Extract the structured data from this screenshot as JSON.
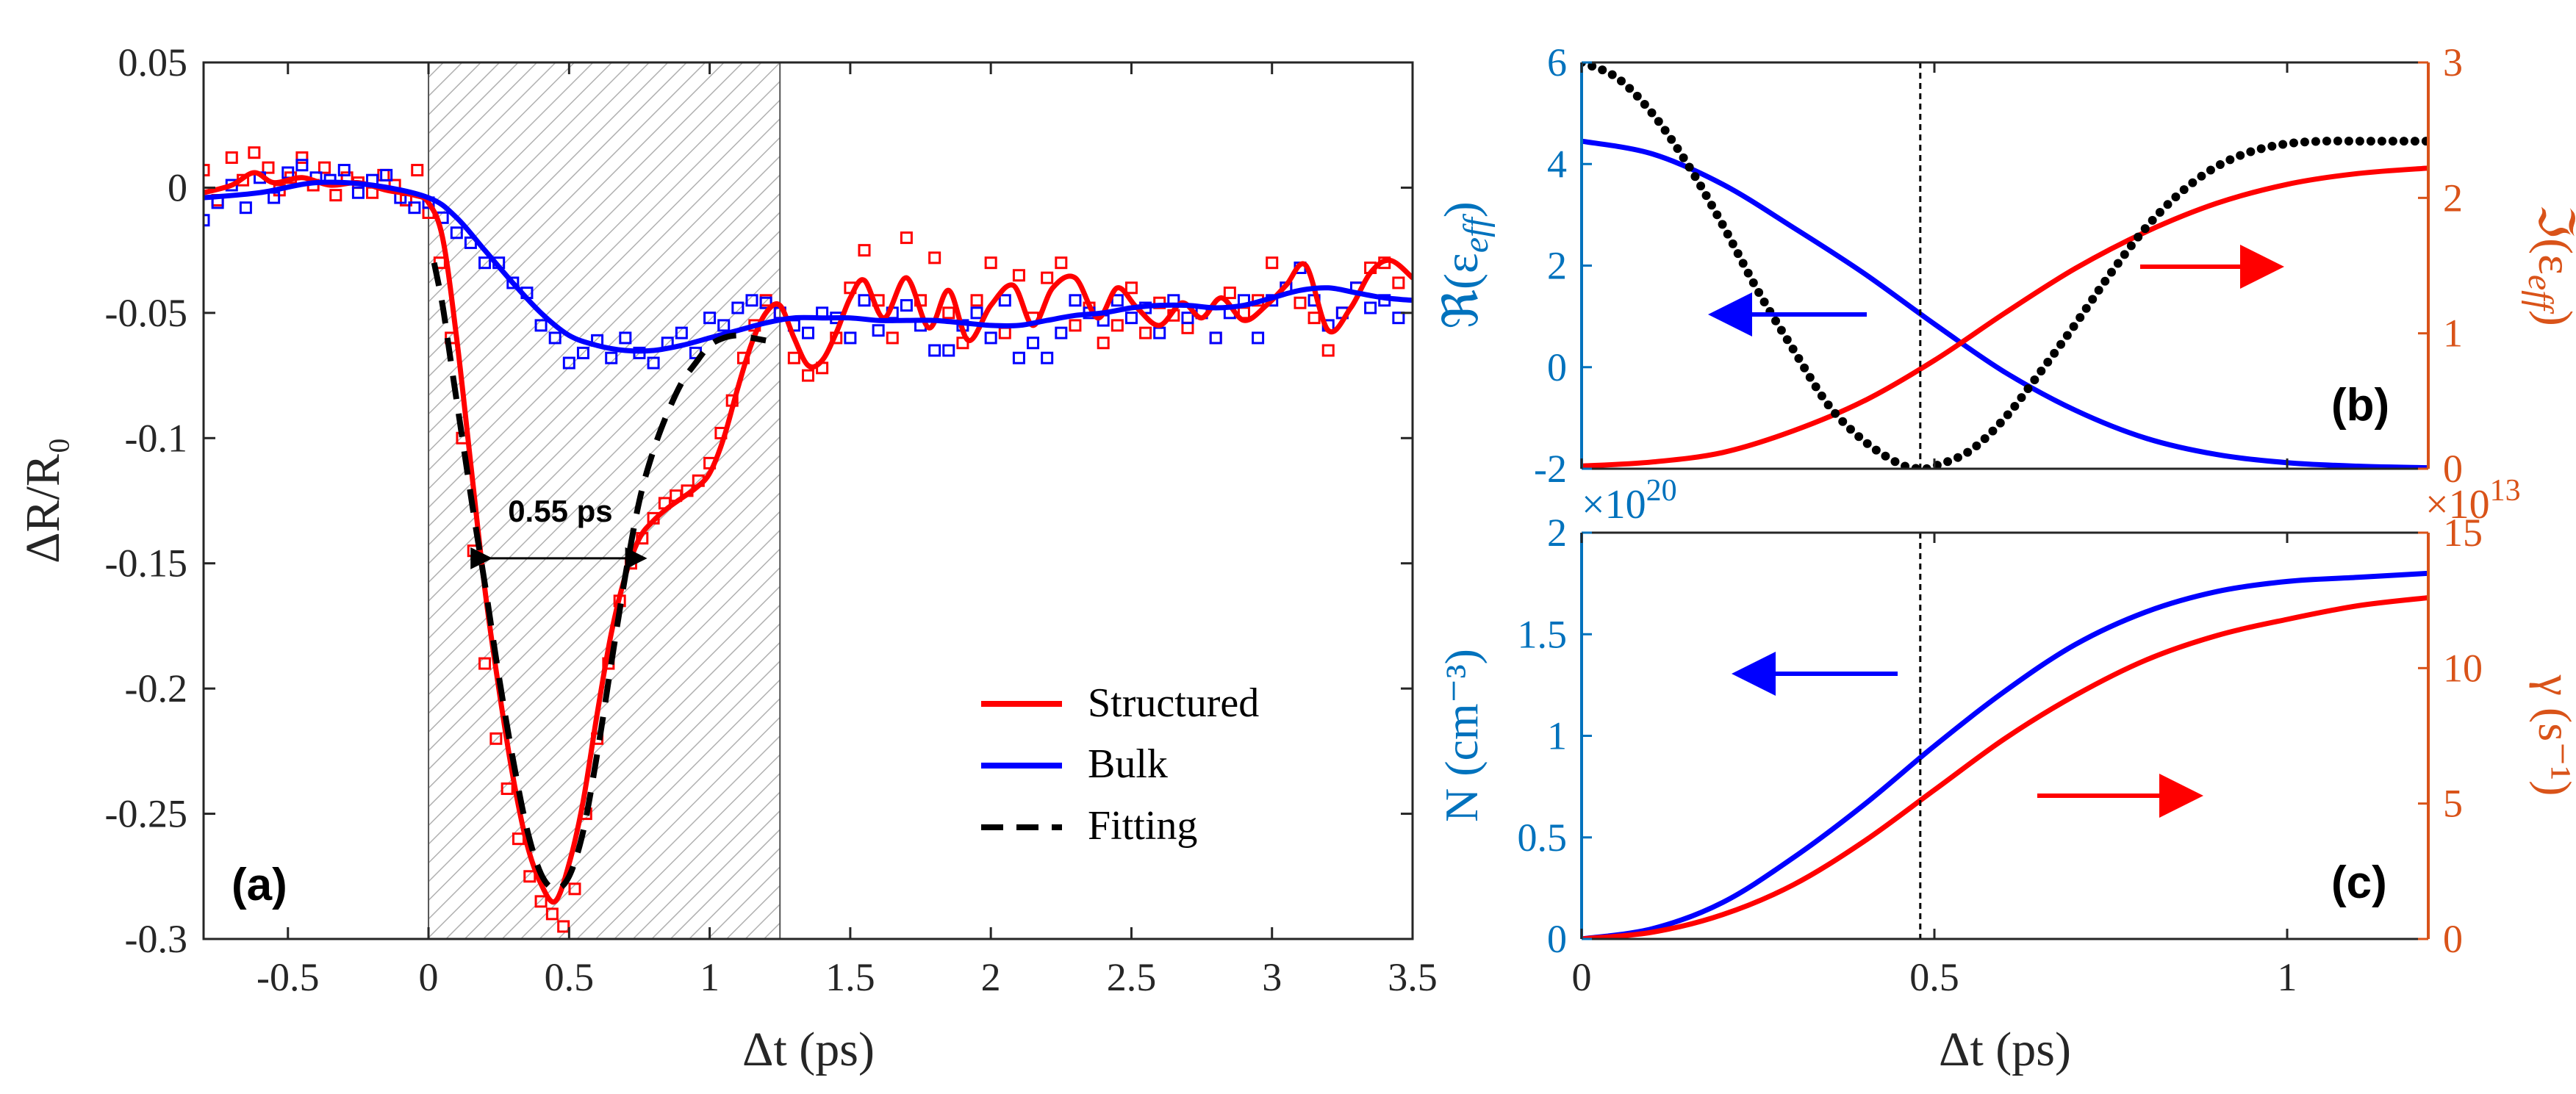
{
  "colors": {
    "structured": "#ff0000",
    "bulk": "#0000ff",
    "fitting": "#000000",
    "left_axis_blue": "#0072bd",
    "right_axis_orange": "#d95319",
    "hatch": "#b0b0b0"
  },
  "chart_data": [
    {
      "id": "a",
      "type": "line",
      "panel_label": "(a)",
      "xlabel": "Δt (ps)",
      "ylabel": "ΔR/R₀",
      "xlim": [
        -0.8,
        3.5
      ],
      "ylim": [
        -0.3,
        0.05
      ],
      "xticks": [
        -0.5,
        0,
        0.5,
        1,
        1.5,
        2,
        2.5,
        3,
        3.5
      ],
      "xtick_labels": [
        "-0.5",
        "0",
        "0.5",
        "1",
        "1.5",
        "2",
        "2.5",
        "3",
        "3.5"
      ],
      "yticks": [
        0.05,
        0,
        -0.05,
        -0.1,
        -0.15,
        -0.2,
        -0.25,
        -0.3
      ],
      "ytick_labels": [
        "0.05",
        "0",
        "-0.05",
        "-0.1",
        "-0.15",
        "-0.2",
        "-0.25",
        "-0.3"
      ],
      "shaded_region": [
        0,
        1.25
      ],
      "annotation": {
        "text": "0.55 ps",
        "from": 0.22,
        "to": 0.77,
        "y": -0.148
      },
      "legend": {
        "entries": [
          "Structured",
          "Bulk",
          "Fitting"
        ],
        "placement": "bottom-right"
      },
      "series": [
        {
          "name": "Structured",
          "color": "#ff0000",
          "style": "solid",
          "x": [
            -0.8,
            -0.7,
            -0.62,
            -0.55,
            -0.45,
            -0.35,
            -0.25,
            -0.15,
            -0.05,
            0.0,
            0.05,
            0.1,
            0.15,
            0.2,
            0.25,
            0.3,
            0.35,
            0.4,
            0.45,
            0.5,
            0.55,
            0.6,
            0.65,
            0.7,
            0.75,
            0.8,
            0.85,
            0.9,
            0.95,
            1.0,
            1.05,
            1.1,
            1.15,
            1.2,
            1.25,
            1.3,
            1.35,
            1.4,
            1.45,
            1.5,
            1.55,
            1.62,
            1.7,
            1.78,
            1.85,
            1.92,
            2.0,
            2.08,
            2.15,
            2.22,
            2.3,
            2.38,
            2.45,
            2.52,
            2.6,
            2.68,
            2.75,
            2.82,
            2.9,
            2.98,
            3.05,
            3.12,
            3.2,
            3.28,
            3.35,
            3.42,
            3.5
          ],
          "y": [
            -0.002,
            0.001,
            0.006,
            0.002,
            0.004,
            0.001,
            0.002,
            -0.001,
            -0.003,
            -0.006,
            -0.02,
            -0.06,
            -0.11,
            -0.16,
            -0.2,
            -0.235,
            -0.262,
            -0.278,
            -0.285,
            -0.27,
            -0.245,
            -0.21,
            -0.178,
            -0.155,
            -0.14,
            -0.133,
            -0.128,
            -0.124,
            -0.12,
            -0.114,
            -0.1,
            -0.08,
            -0.062,
            -0.05,
            -0.047,
            -0.06,
            -0.071,
            -0.069,
            -0.058,
            -0.044,
            -0.037,
            -0.052,
            -0.036,
            -0.056,
            -0.041,
            -0.061,
            -0.047,
            -0.039,
            -0.055,
            -0.04,
            -0.036,
            -0.052,
            -0.04,
            -0.048,
            -0.055,
            -0.046,
            -0.052,
            -0.044,
            -0.053,
            -0.047,
            -0.039,
            -0.031,
            -0.057,
            -0.048,
            -0.034,
            -0.029,
            -0.036
          ]
        },
        {
          "name": "Bulk",
          "color": "#0000ff",
          "style": "solid",
          "x": [
            -0.8,
            -0.6,
            -0.4,
            -0.2,
            0.0,
            0.1,
            0.2,
            0.3,
            0.4,
            0.5,
            0.6,
            0.7,
            0.8,
            0.9,
            1.0,
            1.1,
            1.2,
            1.3,
            1.4,
            1.5,
            1.6,
            1.7,
            1.8,
            1.9,
            2.0,
            2.1,
            2.2,
            2.3,
            2.4,
            2.5,
            2.6,
            2.7,
            2.8,
            2.9,
            3.0,
            3.1,
            3.2,
            3.3,
            3.4,
            3.5
          ],
          "y": [
            -0.004,
            -0.002,
            0.002,
            0.001,
            -0.004,
            -0.012,
            -0.025,
            -0.038,
            -0.05,
            -0.059,
            -0.063,
            -0.065,
            -0.065,
            -0.063,
            -0.06,
            -0.057,
            -0.054,
            -0.052,
            -0.052,
            -0.052,
            -0.053,
            -0.053,
            -0.053,
            -0.054,
            -0.055,
            -0.055,
            -0.053,
            -0.051,
            -0.05,
            -0.048,
            -0.047,
            -0.047,
            -0.048,
            -0.047,
            -0.044,
            -0.041,
            -0.04,
            -0.042,
            -0.044,
            -0.045
          ]
        },
        {
          "name": "Fitting",
          "color": "#000000",
          "style": "dashed",
          "x": [
            0.02,
            0.05,
            0.08,
            0.12,
            0.16,
            0.2,
            0.25,
            0.3,
            0.35,
            0.4,
            0.45,
            0.5,
            0.55,
            0.6,
            0.65,
            0.7,
            0.75,
            0.8,
            0.85,
            0.9,
            0.95,
            1.0,
            1.05,
            1.1,
            1.15,
            1.2
          ],
          "y": [
            -0.03,
            -0.047,
            -0.07,
            -0.1,
            -0.13,
            -0.158,
            -0.195,
            -0.228,
            -0.256,
            -0.274,
            -0.28,
            -0.275,
            -0.257,
            -0.226,
            -0.19,
            -0.155,
            -0.125,
            -0.105,
            -0.09,
            -0.078,
            -0.07,
            -0.063,
            -0.06,
            -0.059,
            -0.06,
            -0.061
          ]
        },
        {
          "name": "Structured (measured)",
          "color": "#ff0000",
          "style": "markers",
          "x": [
            -0.8,
            -0.75,
            -0.7,
            -0.66,
            -0.62,
            -0.57,
            -0.53,
            -0.49,
            -0.45,
            -0.41,
            -0.37,
            -0.33,
            -0.29,
            -0.25,
            -0.2,
            -0.16,
            -0.12,
            -0.08,
            -0.04,
            0.0,
            0.04,
            0.08,
            0.12,
            0.16,
            0.2,
            0.24,
            0.28,
            0.32,
            0.36,
            0.4,
            0.44,
            0.48,
            0.52,
            0.56,
            0.6,
            0.64,
            0.68,
            0.72,
            0.76,
            0.8,
            0.84,
            0.88,
            0.92,
            0.96,
            1.0,
            1.04,
            1.08,
            1.12,
            1.16,
            1.2,
            1.25,
            1.3,
            1.35,
            1.4,
            1.45,
            1.5,
            1.55,
            1.6,
            1.65,
            1.7,
            1.75,
            1.8,
            1.85,
            1.9,
            1.95,
            2.0,
            2.05,
            2.1,
            2.15,
            2.2,
            2.25,
            2.3,
            2.35,
            2.4,
            2.45,
            2.5,
            2.55,
            2.6,
            2.65,
            2.7,
            2.75,
            2.8,
            2.85,
            2.9,
            2.95,
            3.0,
            3.05,
            3.1,
            3.15,
            3.2,
            3.25,
            3.3,
            3.35,
            3.4,
            3.45
          ],
          "y": [
            0.007,
            -0.005,
            0.012,
            0.003,
            0.014,
            0.008,
            -0.001,
            0.004,
            0.012,
            0.001,
            0.008,
            -0.003,
            0.004,
            0.002,
            -0.002,
            0.005,
            0.001,
            -0.005,
            0.007,
            -0.01,
            -0.03,
            -0.06,
            -0.1,
            -0.145,
            -0.19,
            -0.22,
            -0.24,
            -0.26,
            -0.275,
            -0.285,
            -0.29,
            -0.295,
            -0.28,
            -0.25,
            -0.22,
            -0.19,
            -0.165,
            -0.15,
            -0.14,
            -0.132,
            -0.126,
            -0.123,
            -0.121,
            -0.117,
            -0.11,
            -0.098,
            -0.085,
            -0.068,
            -0.055,
            -0.045,
            -0.05,
            -0.068,
            -0.075,
            -0.072,
            -0.06,
            -0.04,
            -0.025,
            -0.045,
            -0.06,
            -0.02,
            -0.045,
            -0.028,
            -0.05,
            -0.062,
            -0.045,
            -0.03,
            -0.058,
            -0.035,
            -0.052,
            -0.036,
            -0.03,
            -0.055,
            -0.048,
            -0.062,
            -0.055,
            -0.04,
            -0.058,
            -0.046,
            -0.051,
            -0.056,
            -0.05,
            -0.06,
            -0.042,
            -0.05,
            -0.045,
            -0.03,
            -0.04,
            -0.046,
            -0.052,
            -0.065,
            -0.05,
            -0.04,
            -0.032,
            -0.03,
            -0.038
          ]
        },
        {
          "name": "Bulk (measured)",
          "color": "#0000ff",
          "style": "markers",
          "x": [
            -0.8,
            -0.75,
            -0.7,
            -0.65,
            -0.6,
            -0.55,
            -0.5,
            -0.45,
            -0.4,
            -0.35,
            -0.3,
            -0.25,
            -0.2,
            -0.15,
            -0.1,
            -0.05,
            0.0,
            0.05,
            0.1,
            0.15,
            0.2,
            0.25,
            0.3,
            0.35,
            0.4,
            0.45,
            0.5,
            0.55,
            0.6,
            0.65,
            0.7,
            0.75,
            0.8,
            0.85,
            0.9,
            0.95,
            1.0,
            1.05,
            1.1,
            1.15,
            1.2,
            1.25,
            1.3,
            1.35,
            1.4,
            1.45,
            1.5,
            1.55,
            1.6,
            1.65,
            1.7,
            1.75,
            1.8,
            1.85,
            1.9,
            1.95,
            2.0,
            2.05,
            2.1,
            2.15,
            2.2,
            2.25,
            2.3,
            2.35,
            2.4,
            2.45,
            2.5,
            2.55,
            2.6,
            2.65,
            2.7,
            2.75,
            2.8,
            2.85,
            2.9,
            2.95,
            3.0,
            3.05,
            3.1,
            3.15,
            3.2,
            3.25,
            3.3,
            3.35,
            3.4,
            3.45
          ],
          "y": [
            -0.013,
            -0.006,
            0.001,
            -0.008,
            0.004,
            -0.004,
            0.006,
            0.009,
            0.004,
            0.003,
            0.007,
            -0.002,
            0.003,
            0.005,
            -0.004,
            -0.008,
            -0.006,
            -0.012,
            -0.018,
            -0.022,
            -0.03,
            -0.03,
            -0.038,
            -0.042,
            -0.055,
            -0.06,
            -0.07,
            -0.066,
            -0.061,
            -0.068,
            -0.06,
            -0.066,
            -0.07,
            -0.062,
            -0.058,
            -0.066,
            -0.052,
            -0.055,
            -0.048,
            -0.045,
            -0.046,
            -0.05,
            -0.055,
            -0.058,
            -0.05,
            -0.052,
            -0.06,
            -0.045,
            -0.057,
            -0.05,
            -0.047,
            -0.055,
            -0.065,
            -0.065,
            -0.055,
            -0.05,
            -0.06,
            -0.045,
            -0.068,
            -0.062,
            -0.068,
            -0.058,
            -0.045,
            -0.05,
            -0.053,
            -0.045,
            -0.052,
            -0.048,
            -0.058,
            -0.045,
            -0.052,
            -0.05,
            -0.06,
            -0.05,
            -0.045,
            -0.06,
            -0.045,
            -0.04,
            -0.032,
            -0.045,
            -0.055,
            -0.05,
            -0.04,
            -0.048,
            -0.045,
            -0.052
          ]
        }
      ]
    },
    {
      "id": "b",
      "type": "line",
      "panel_label": "(b)",
      "xlabel": "",
      "ylabel_left": "ℜ(ε_eff)",
      "ylabel_right": "ℑ(ε_eff)",
      "xlim": [
        0,
        1.2
      ],
      "ylim_left": [
        -2,
        6
      ],
      "ylim_right": [
        0,
        3
      ],
      "yticks_left": [
        6,
        4,
        2,
        0,
        -2
      ],
      "ytick_labels_left": [
        "6",
        "4",
        "2",
        "0",
        "-2"
      ],
      "yticks_right": [
        3,
        2,
        1,
        0
      ],
      "ytick_labels_right": [
        "3",
        "2",
        "1",
        "0"
      ],
      "vline": 0.48,
      "series": [
        {
          "name": "Re(eps_eff)",
          "axis": "left",
          "color": "#0000ff",
          "style": "solid",
          "x": [
            0,
            0.1,
            0.2,
            0.3,
            0.4,
            0.5,
            0.6,
            0.7,
            0.8,
            0.9,
            1.0,
            1.1,
            1.2
          ],
          "y": [
            4.45,
            4.2,
            3.6,
            2.75,
            1.85,
            0.85,
            -0.1,
            -0.85,
            -1.4,
            -1.72,
            -1.88,
            -1.95,
            -1.98
          ]
        },
        {
          "name": "Im(eps_eff)",
          "axis": "right",
          "color": "#ff0000",
          "style": "solid",
          "x": [
            0,
            0.1,
            0.2,
            0.3,
            0.4,
            0.5,
            0.6,
            0.7,
            0.8,
            0.9,
            1.0,
            1.1,
            1.2
          ],
          "y": [
            0.02,
            0.05,
            0.12,
            0.28,
            0.5,
            0.8,
            1.15,
            1.48,
            1.75,
            1.96,
            2.1,
            2.18,
            2.22
          ]
        },
        {
          "name": "dotted",
          "axis": "left",
          "color": "#000000",
          "style": "dotted",
          "x": [
            0,
            0.05,
            0.1,
            0.15,
            0.2,
            0.25,
            0.3,
            0.35,
            0.4,
            0.45,
            0.48,
            0.5,
            0.55,
            0.6,
            0.65,
            0.7,
            0.75,
            0.8,
            0.85,
            0.9,
            0.95,
            1.0,
            1.05,
            1.1,
            1.15,
            1.2
          ],
          "y": [
            6.0,
            5.7,
            5.0,
            4.0,
            2.8,
            1.5,
            0.35,
            -0.75,
            -1.45,
            -1.9,
            -2.0,
            -1.95,
            -1.65,
            -1.0,
            -0.1,
            0.85,
            1.85,
            2.75,
            3.45,
            3.95,
            4.25,
            4.4,
            4.45,
            4.45,
            4.45,
            4.45
          ]
        }
      ],
      "arrows": [
        {
          "color": "#0000ff",
          "direction": "left"
        },
        {
          "color": "#ff0000",
          "direction": "right"
        }
      ]
    },
    {
      "id": "c",
      "type": "line",
      "panel_label": "(c)",
      "xlabel": "Δt (ps)",
      "ylabel_left": "N (cm⁻³)",
      "ylabel_right": "γ (s⁻¹)",
      "xlim": [
        0,
        1.2
      ],
      "ylim_left": [
        0,
        2
      ],
      "ylim_right": [
        0,
        15
      ],
      "xticks": [
        0,
        0.5,
        1
      ],
      "xtick_labels": [
        "0",
        "0.5",
        "1"
      ],
      "yticks_left": [
        2,
        1.5,
        1,
        0.5,
        0
      ],
      "ytick_labels_left": [
        "2",
        "1.5",
        "1",
        "0.5",
        "0"
      ],
      "yticks_right": [
        15,
        10,
        5,
        0
      ],
      "ytick_labels_right": [
        "15",
        "10",
        "5",
        "0"
      ],
      "left_scale_base": "×10",
      "left_scale_exp": "20",
      "right_scale_base": "×10",
      "right_scale_exp": "13",
      "vline": 0.48,
      "series": [
        {
          "name": "N",
          "axis": "left",
          "color": "#0000ff",
          "style": "solid",
          "x": [
            0,
            0.1,
            0.2,
            0.3,
            0.4,
            0.5,
            0.6,
            0.7,
            0.8,
            0.9,
            1.0,
            1.1,
            1.2
          ],
          "y": [
            0.0,
            0.05,
            0.18,
            0.4,
            0.66,
            0.95,
            1.22,
            1.45,
            1.61,
            1.71,
            1.76,
            1.78,
            1.8
          ]
        },
        {
          "name": "gamma",
          "axis": "right",
          "color": "#ff0000",
          "style": "solid",
          "x": [
            0,
            0.1,
            0.2,
            0.3,
            0.4,
            0.5,
            0.6,
            0.7,
            0.8,
            0.9,
            1.0,
            1.1,
            1.2
          ],
          "y": [
            0.0,
            0.25,
            0.9,
            2.0,
            3.6,
            5.5,
            7.4,
            9.0,
            10.3,
            11.2,
            11.8,
            12.3,
            12.6
          ]
        }
      ],
      "arrows": [
        {
          "color": "#0000ff",
          "direction": "left"
        },
        {
          "color": "#ff0000",
          "direction": "right"
        }
      ]
    }
  ]
}
